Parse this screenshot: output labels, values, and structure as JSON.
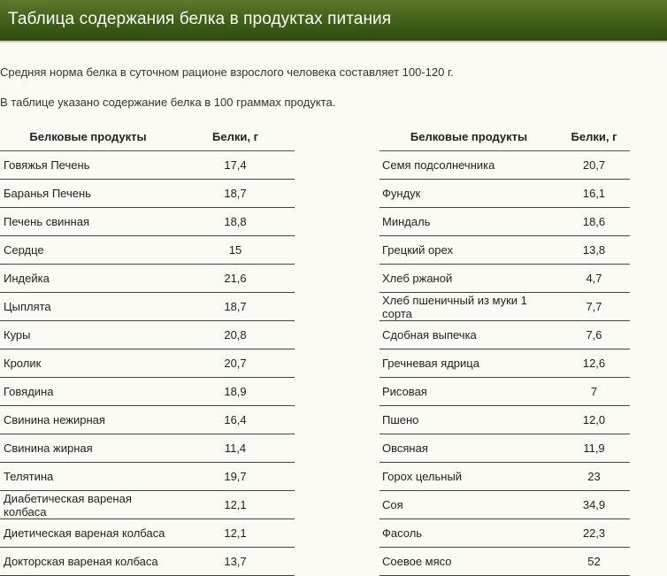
{
  "page": {
    "title": "Таблица содержания белка в продуктах питания",
    "intro_line1": "Средняя норма белка в суточном рационе взрослого человека составляет 100-120 г.",
    "intro_line2": "В таблице указано содержание белка в 100 граммах продукта."
  },
  "table": {
    "headers": [
      "Белковые продукты",
      "Белки, г",
      "Белковые продукты",
      "Белки, г"
    ],
    "rows": [
      {
        "left_name": "Говяжья Печень",
        "left_value": "17,4",
        "right_name": "Семя подсолнечника",
        "right_value": "20,7"
      },
      {
        "left_name": "Баранья Печень",
        "left_value": "18,7",
        "right_name": "Фундук",
        "right_value": "16,1"
      },
      {
        "left_name": "Печень свинная",
        "left_value": "18,8",
        "right_name": "Миндаль",
        "right_value": "18,6"
      },
      {
        "left_name": "Сердце",
        "left_value": "15",
        "right_name": "Грецкий орех",
        "right_value": "13,8"
      },
      {
        "left_name": "Индейка",
        "left_value": "21,6",
        "right_name": "Хлеб ржаной",
        "right_value": "4,7"
      },
      {
        "left_name": "Цыплята",
        "left_value": "18,7",
        "right_name": "Хлеб пшеничный из муки 1 сорта",
        "right_value": "7,7"
      },
      {
        "left_name": "Куры",
        "left_value": "20,8",
        "right_name": "Сдобная выпечка",
        "right_value": "7,6"
      },
      {
        "left_name": "Кролик",
        "left_value": "20,7",
        "right_name": "Гречневая ядрица",
        "right_value": "12,6"
      },
      {
        "left_name": "Говядина",
        "left_value": "18,9",
        "right_name": "Рисовая",
        "right_value": "7"
      },
      {
        "left_name": "Свинина нежирная",
        "left_value": "16,4",
        "right_name": "Пшено",
        "right_value": "12,0"
      },
      {
        "left_name": "Свинина жирная",
        "left_value": "11,4",
        "right_name": "Овсяная",
        "right_value": "11,9"
      },
      {
        "left_name": "Телятина",
        "left_value": "19,7",
        "right_name": "Горох цельный",
        "right_value": "23"
      },
      {
        "left_name": "Диабетическая вареная колбаса",
        "left_value": "12,1",
        "right_name": "Соя",
        "right_value": "34,9"
      },
      {
        "left_name": "Диетическая вареная колбаса",
        "left_value": "12,1",
        "right_name": "Фасоль",
        "right_value": "22,3"
      },
      {
        "left_name": "Докторская вареная колбаса",
        "left_value": "13,7",
        "right_name": "Соевое мясо",
        "right_value": "52"
      }
    ]
  }
}
